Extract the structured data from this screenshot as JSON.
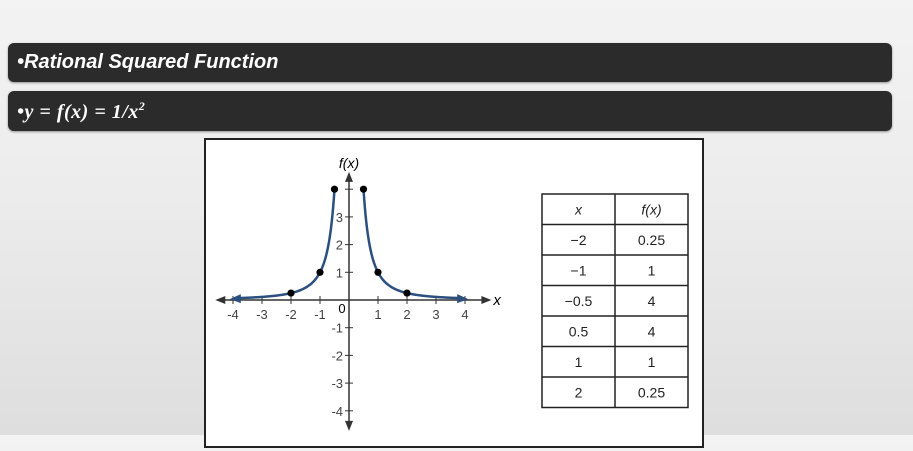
{
  "slide": {
    "title": "•Rational Squared Function",
    "formula": {
      "bullet": "•",
      "lhs": "y",
      "eq1": " = ",
      "f": "f",
      "paren_open": "(",
      "x": "x",
      "paren_close": ")",
      "eq2": " = ",
      "rhs": "1/",
      "rhs_x": "x",
      "exp": "2"
    }
  },
  "colors": {
    "curve": "#2b4f7e",
    "axis": "#333333",
    "point": "#000000",
    "banner": "#2b2b2b"
  },
  "chart_data": [
    {
      "type": "line",
      "function": "1/x^2",
      "xlabel": "x",
      "ylabel": "f(x)",
      "xlim": [
        -4,
        4
      ],
      "ylim": [
        -4,
        4
      ],
      "origin_label": "0",
      "x_ticks": [
        -4,
        -3,
        -2,
        -1,
        1,
        2,
        3,
        4
      ],
      "x_tick_labels": [
        "-4",
        "-3",
        "-2",
        "-1",
        "1",
        "2",
        "3",
        "4"
      ],
      "y_ticks": [
        -4,
        -3,
        -2,
        -1,
        1,
        2,
        3,
        4
      ],
      "y_tick_labels": [
        "-4",
        "-3",
        "-2",
        "-1",
        "1",
        "2",
        "3",
        ""
      ],
      "points": [
        {
          "x": -2,
          "y": 0.25
        },
        {
          "x": -1,
          "y": 1
        },
        {
          "x": -0.5,
          "y": 4
        },
        {
          "x": 0.5,
          "y": 4
        },
        {
          "x": 1,
          "y": 1
        },
        {
          "x": 2,
          "y": 0.25
        }
      ],
      "grid": false
    },
    {
      "type": "table",
      "columns": [
        "x",
        "f(x)"
      ],
      "rows": [
        [
          "−2",
          "0.25"
        ],
        [
          "−1",
          "1"
        ],
        [
          "−0.5",
          "4"
        ],
        [
          "0.5",
          "4"
        ],
        [
          "1",
          "1"
        ],
        [
          "2",
          "0.25"
        ]
      ]
    }
  ]
}
